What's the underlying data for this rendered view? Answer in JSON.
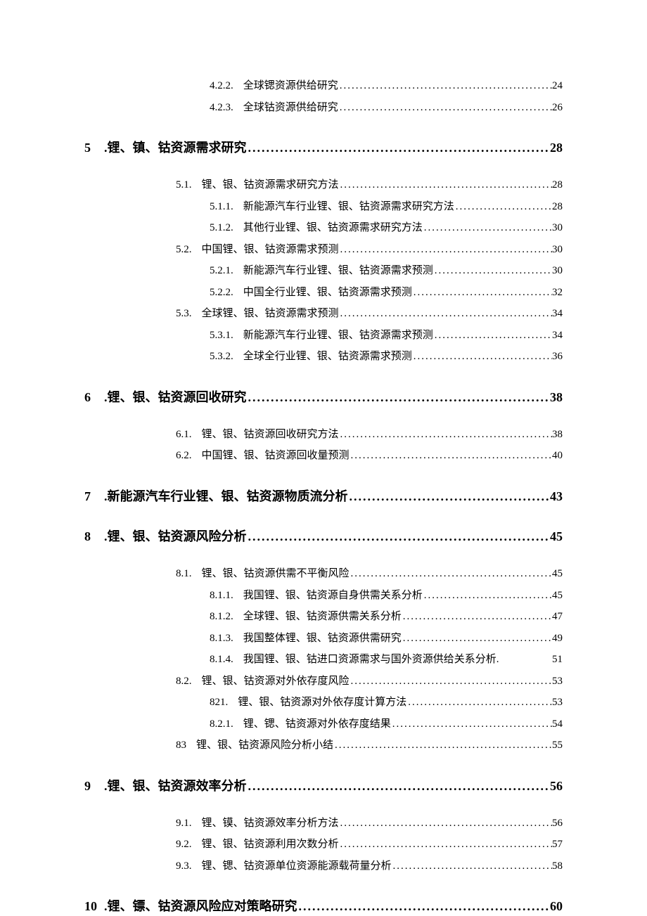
{
  "entries": [
    {
      "level": 3,
      "num": "4.2.2.",
      "title": "全球锶资源供给研究",
      "page": "24"
    },
    {
      "level": 3,
      "num": "4.2.3.",
      "title": "全球钴资源供给研究",
      "page": "26"
    },
    {
      "level": 1,
      "num": "5",
      "title": ".锂、镇、钴资源需求研究",
      "page": "28"
    },
    {
      "level": 2,
      "num": "5.1.",
      "title": "锂、银、钴资源需求研究方法",
      "page": "28"
    },
    {
      "level": 3,
      "num": "5.1.1.",
      "title": "新能源汽车行业锂、银、钴资源需求研究方法",
      "page": "28"
    },
    {
      "level": 3,
      "num": "5.1.2.",
      "title": "其他行业锂、银、钴资源需求研究方法",
      "page": "30"
    },
    {
      "level": 2,
      "num": "5.2.",
      "title": "中国锂、银、钴资源需求预测",
      "page": "30"
    },
    {
      "level": 3,
      "num": "5.2.1.",
      "title": "新能源汽车行业锂、银、钴资源需求预测",
      "page": "30"
    },
    {
      "level": 3,
      "num": "5.2.2.",
      "title": "中国全行业锂、银、钴资源需求预测",
      "page": "32"
    },
    {
      "level": 2,
      "num": "5.3.",
      "title": "全球锂、银、钴资源需求预测",
      "page": "34"
    },
    {
      "level": 3,
      "num": "5.3.1.",
      "title": "新能源汽车行业锂、银、钴资源需求预测",
      "page": "34"
    },
    {
      "level": 3,
      "num": "5.3.2.",
      "title": "全球全行业锂、银、钴资源需求预测",
      "page": "36"
    },
    {
      "level": 1,
      "num": "6",
      "title": ".锂、银、钴资源回收研究",
      "page": "38"
    },
    {
      "level": 2,
      "num": "6.1.",
      "title": "锂、银、钴资源回收研究方法",
      "page": "38"
    },
    {
      "level": 2,
      "num": "6.2.",
      "title": "中国锂、银、钴资源回收量预测",
      "page": "40"
    },
    {
      "level": 1,
      "num": "7",
      "title": ".新能源汽车行业锂、银、钴资源物质流分析",
      "page": "43"
    },
    {
      "level": 1,
      "num": "8",
      "title": ".锂、银、钴资源风险分析",
      "page": "45"
    },
    {
      "level": 2,
      "num": "8.1.",
      "title": "锂、银、钴资源供需不平衡风险",
      "page": "45"
    },
    {
      "level": 3,
      "num": "8.1.1.",
      "title": "我国锂、银、钴资源自身供需关系分析",
      "page": "45"
    },
    {
      "level": 3,
      "num": "8.1.2.",
      "title": "全球锂、银、钴资源供需关系分析",
      "page": "47"
    },
    {
      "level": 3,
      "num": "8.1.3.",
      "title": "我国整体锂、银、钴资源供需研究",
      "page": "49"
    },
    {
      "level": 3,
      "num": "8.1.4.",
      "title": "我国锂、银、钴进口资源需求与国外资源供给关系分析.",
      "page": "51",
      "nodots": true
    },
    {
      "level": 2,
      "num": "8.2.",
      "title": "锂、银、钴资源对外依存度风险",
      "page": "53"
    },
    {
      "level": 3,
      "num": "821.",
      "title": "锂、银、钴资源对外依存度计算方法",
      "page": "53"
    },
    {
      "level": 3,
      "num": "8.2.1.",
      "title": "锂、锶、钴资源对外依存度结果",
      "page": "54"
    },
    {
      "level": 2,
      "num": "83",
      "title": "锂、银、钴资源风险分析小结",
      "page": "55"
    },
    {
      "level": 1,
      "num": "9",
      "title": ".锂、银、钴资源效率分析",
      "page": "56"
    },
    {
      "level": 2,
      "num": "9.1.",
      "title": "锂、镆、钴资源效率分析方法",
      "page": "56"
    },
    {
      "level": 2,
      "num": "9.2.",
      "title": "锂、银、钴资源利用次数分析",
      "page": "57"
    },
    {
      "level": 2,
      "num": "9.3.",
      "title": "锂、锶、钴资源单位资源能源载荷量分析",
      "page": "58"
    },
    {
      "level": 1,
      "num": "10",
      "title": ".锂、镖、钴资源风险应对策略研究",
      "page": "60"
    }
  ]
}
